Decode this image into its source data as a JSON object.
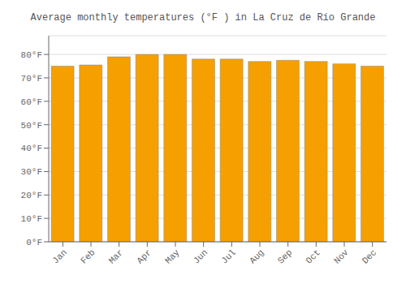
{
  "chart_data": {
    "type": "bar",
    "title": "Average monthly temperatures (°F ) in La Cruz de Río Grande",
    "categories": [
      "Jan",
      "Feb",
      "Mar",
      "Apr",
      "May",
      "Jun",
      "Jul",
      "Aug",
      "Sep",
      "Oct",
      "Nov",
      "Dec"
    ],
    "values": [
      75,
      75.5,
      79,
      80,
      80,
      78,
      78,
      77,
      77.5,
      77,
      76,
      75
    ],
    "color": "#F5A000",
    "ylim": [
      0,
      88
    ],
    "yticks": [
      {
        "value": 0,
        "label": "0°F"
      },
      {
        "value": 10,
        "label": "10°F"
      },
      {
        "value": 20,
        "label": "20°F"
      },
      {
        "value": 30,
        "label": "30°F"
      },
      {
        "value": 40,
        "label": "40°F"
      },
      {
        "value": 50,
        "label": "50°F"
      },
      {
        "value": 60,
        "label": "60°F"
      },
      {
        "value": 70,
        "label": "70°F"
      },
      {
        "value": 80,
        "label": "80°F"
      }
    ],
    "grid": true
  }
}
